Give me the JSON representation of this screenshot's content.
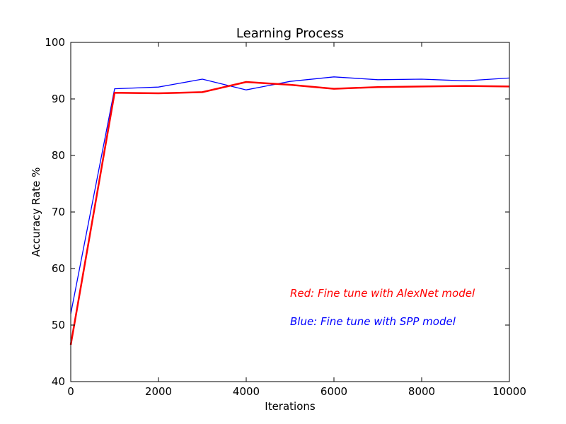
{
  "chart_data": {
    "type": "line",
    "title": "Learning Process",
    "xlabel": "Iterations",
    "ylabel": "Accuracy Rate %",
    "xlim": [
      0,
      10000
    ],
    "ylim": [
      40,
      100
    ],
    "xticks": [
      0,
      2000,
      4000,
      6000,
      8000,
      10000
    ],
    "yticks": [
      40,
      50,
      60,
      70,
      80,
      90,
      100
    ],
    "grid": false,
    "series": [
      {
        "key": "spp",
        "color": "#0000ff",
        "line_style": "thin",
        "x": [
          0,
          1000,
          2000,
          3000,
          4000,
          5000,
          6000,
          7000,
          8000,
          9000,
          10000
        ],
        "y": [
          52,
          91.8,
          92.1,
          93.5,
          91.6,
          93.1,
          93.9,
          93.4,
          93.5,
          93.2,
          93.7
        ]
      },
      {
        "key": "alexnet",
        "color": "#ff0000",
        "line_style": "thick",
        "x": [
          0,
          1000,
          2000,
          3000,
          4000,
          5000,
          6000,
          7000,
          8000,
          9000,
          10000
        ],
        "y": [
          46.5,
          91.1,
          91.0,
          91.2,
          93.0,
          92.5,
          91.8,
          92.1,
          92.2,
          92.3,
          92.2
        ]
      }
    ],
    "annotations": [
      {
        "key": "alexnet",
        "text": "Red: Fine tune with AlexNet model",
        "color": "#ff0000"
      },
      {
        "key": "spp",
        "text": "Blue: Fine tune with SPP model",
        "color": "#0000ff"
      }
    ]
  }
}
